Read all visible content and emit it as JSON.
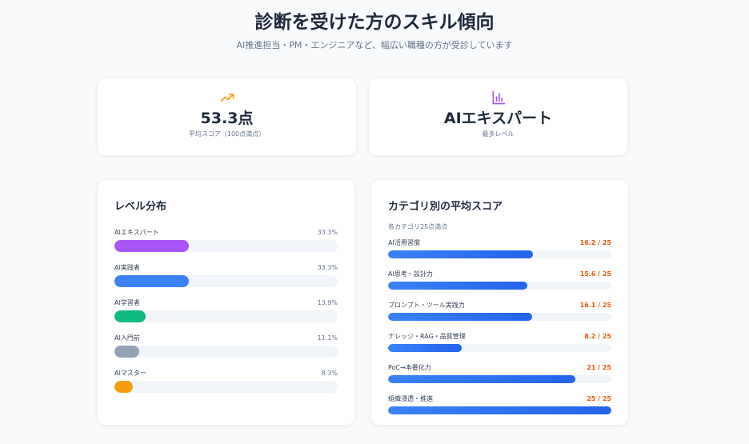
{
  "header": {
    "title": "診断を受けた方のスキル傾向",
    "subtitle": "AI推進担当・PM・エンジニアなど、幅広い職種の方が受診しています"
  },
  "stats": [
    {
      "icon": "trending-up-icon",
      "value": "53.3点",
      "label": "平均スコア（100点満点）",
      "color": "#f59e0b"
    },
    {
      "icon": "bar-chart-icon",
      "value": "AIエキスパート",
      "label": "最多レベル",
      "color": "#a855f7"
    }
  ],
  "levels": {
    "title": "レベル分布",
    "items": [
      {
        "label": "AIエキスパート",
        "value": "33.3%",
        "percent": 33.3,
        "color": "#a855f7"
      },
      {
        "label": "AI実践者",
        "value": "33.3%",
        "percent": 33.3,
        "color": "#3b82f6"
      },
      {
        "label": "AI学習者",
        "value": "13.9%",
        "percent": 13.9,
        "color": "#10b981"
      },
      {
        "label": "AI入門前",
        "value": "11.1%",
        "percent": 11.1,
        "color": "#94a3b8"
      },
      {
        "label": "AIマスター",
        "value": "8.3%",
        "percent": 8.3,
        "color": "#f59e0b"
      }
    ]
  },
  "categories": {
    "title": "カテゴリ別の平均スコア",
    "note": "各カテゴリ25点満点",
    "max": 25,
    "items": [
      {
        "label": "AI活用習慣",
        "value": "16.2 / 25",
        "score": 16.2
      },
      {
        "label": "AI思考・設計力",
        "value": "15.6 / 25",
        "score": 15.6
      },
      {
        "label": "プロンプト・ツール実践力",
        "value": "16.1 / 25",
        "score": 16.1
      },
      {
        "label": "ナレッジ・RAG・品質管理",
        "value": "8.2 / 25",
        "score": 8.2
      },
      {
        "label": "PoC→本番化力",
        "value": "21 / 25",
        "score": 21
      },
      {
        "label": "組織浸透・推進",
        "value": "25 / 25",
        "score": 25
      }
    ]
  }
}
